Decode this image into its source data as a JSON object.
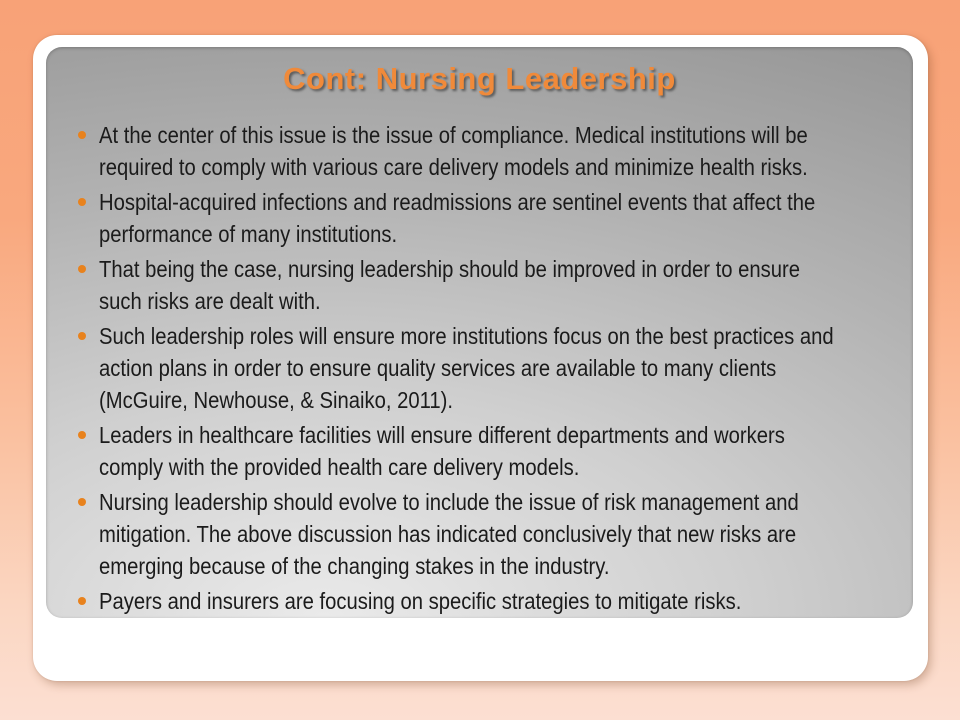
{
  "slide": {
    "title": "Cont: Nursing Leadership",
    "colors": {
      "title_orange": "#f08a3a",
      "bullet_orange": "#e8821d",
      "background_peach_top": "#f8a277",
      "background_peach_bottom": "#fcdfd2",
      "panel_gray_dark": "#969696",
      "panel_gray_light": "#eaeaea",
      "card_white": "#ffffff",
      "text_color": "#1b1b1b"
    },
    "bullets": [
      {
        "text": "At the center of this issue is the issue of compliance. Medical institutions will be\nrequired to comply with various care delivery models and minimize health risks."
      },
      {
        "text": "Hospital-acquired infections and readmissions are sentinel events that affect the\nperformance of many institutions."
      },
      {
        "text": "That being the case, nursing leadership should be improved in order to ensure\nsuch risks are dealt with."
      },
      {
        "text": "Such leadership roles will ensure more institutions focus on the best practices and\naction plans in order to ensure quality services are available to many clients\n(McGuire, Newhouse, & Sinaiko, 2011)."
      },
      {
        "text": "Leaders in healthcare facilities will ensure different departments and workers\ncomply with the provided health care delivery models."
      },
      {
        "text": "Nursing leadership should evolve to include the issue of risk management and\nmitigation. The above discussion has indicated conclusively that new risks are\nemerging because of the changing stakes in the industry."
      },
      {
        "text": "Payers and insurers are focusing on specific strategies to mitigate risks."
      }
    ]
  }
}
